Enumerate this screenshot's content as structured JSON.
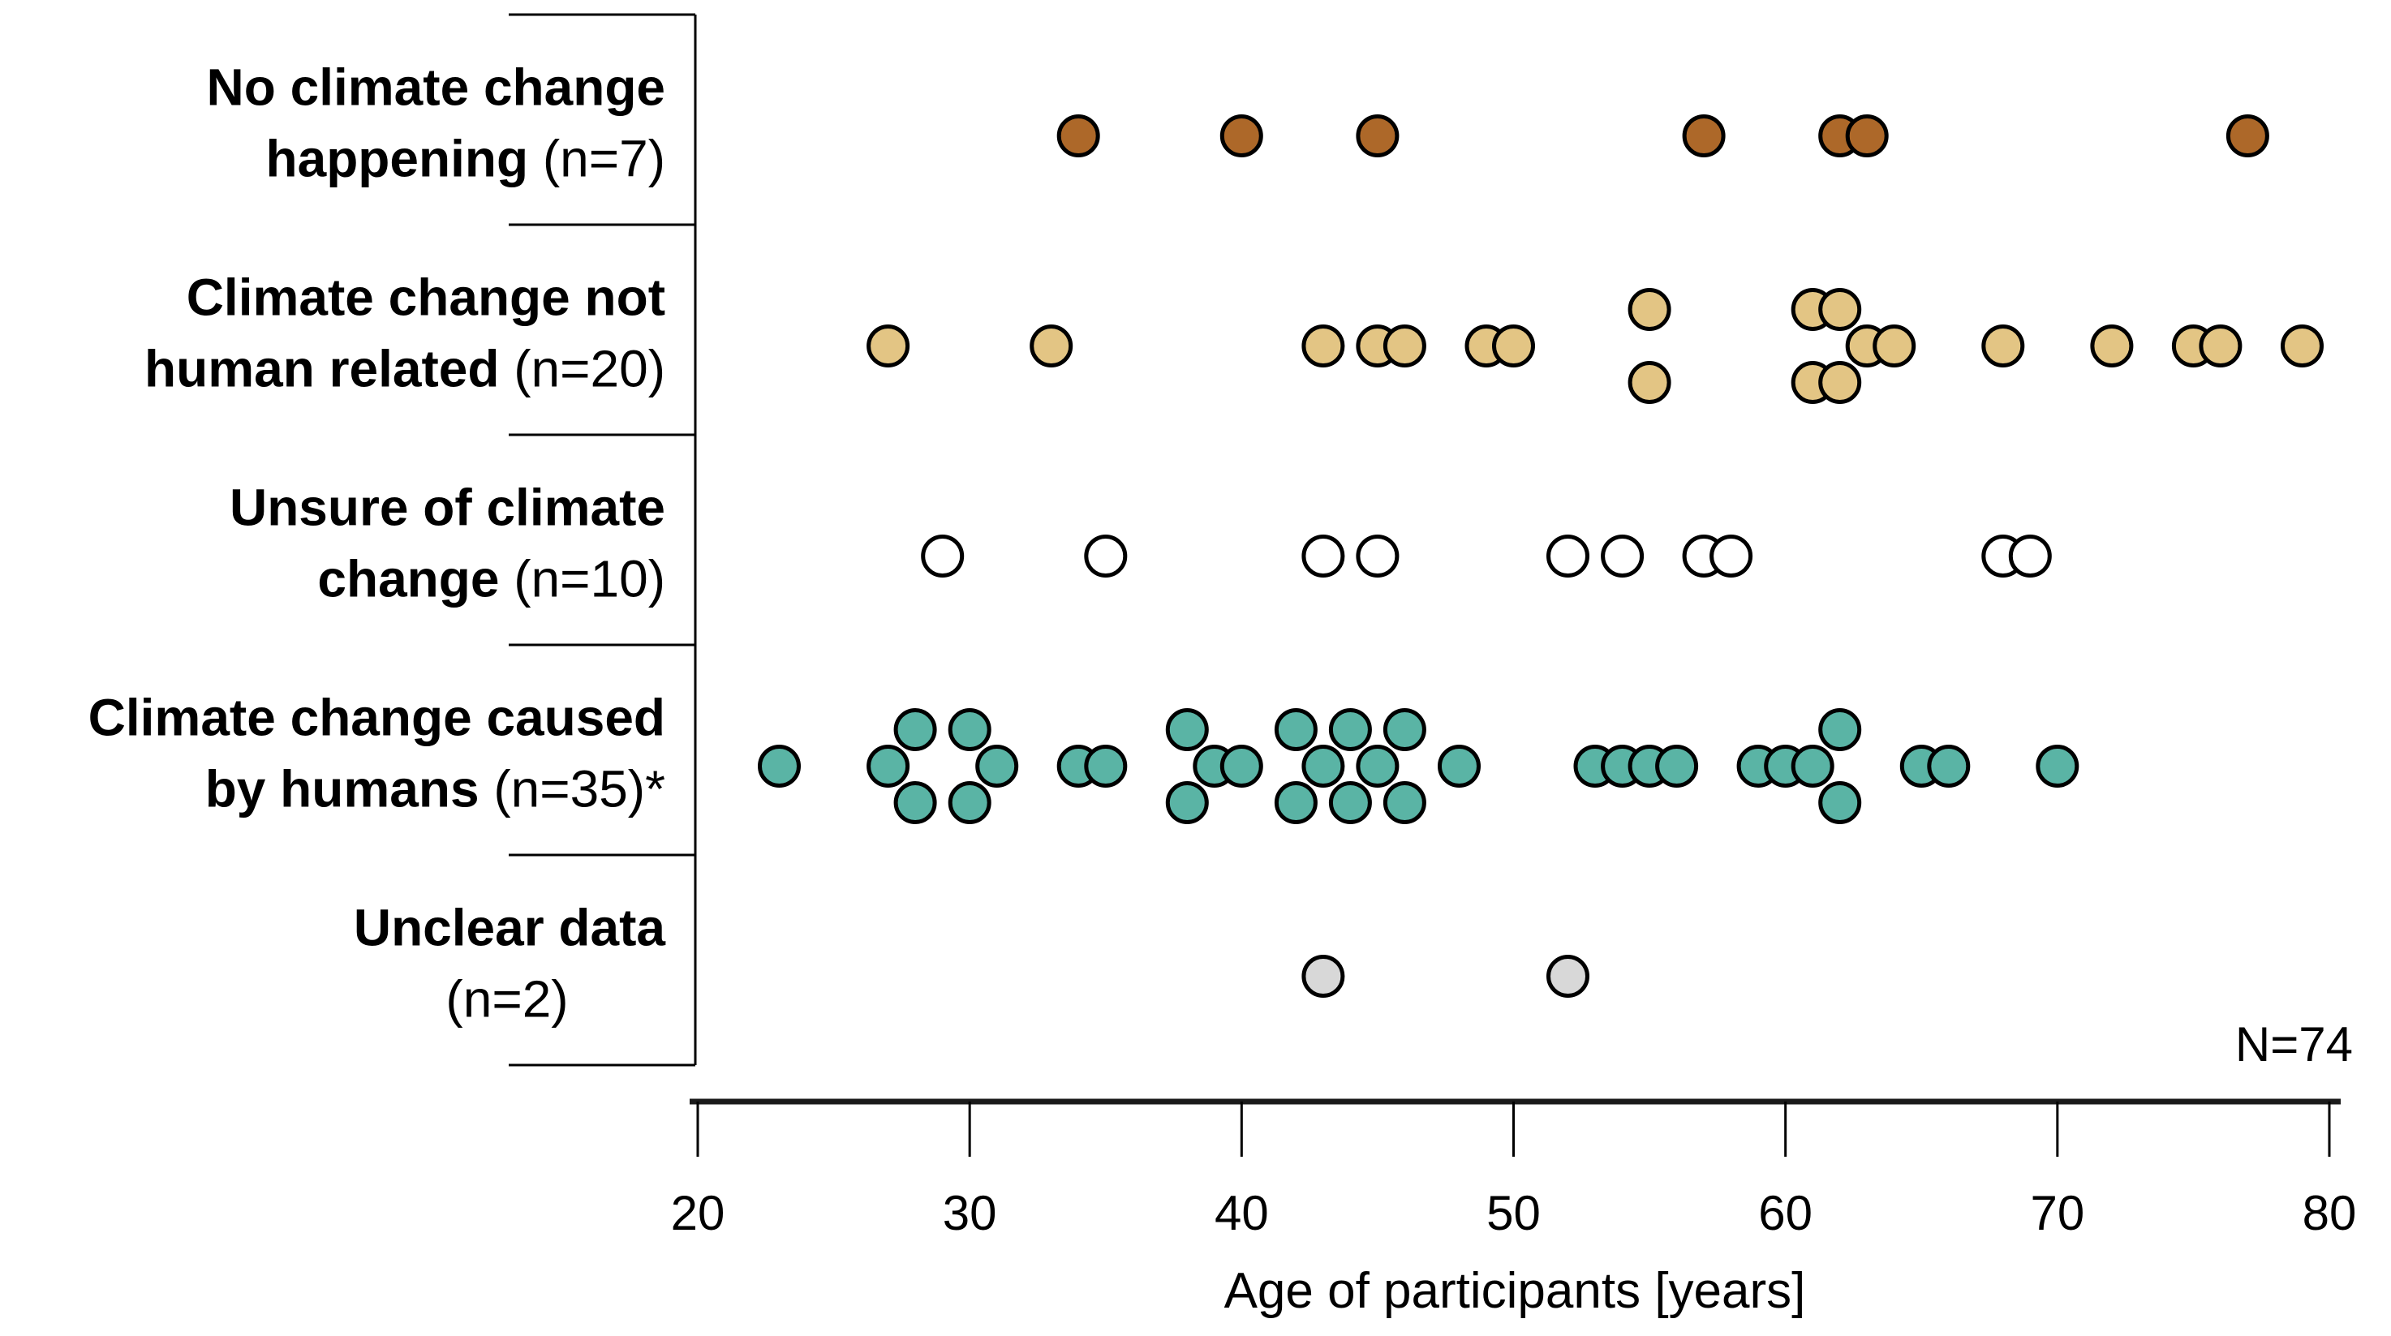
{
  "chart_data": {
    "type": "scatter",
    "title": "",
    "xlabel": "Age of participants [years]",
    "ylabel": "",
    "xlim": [
      20,
      80
    ],
    "xticks": [
      "20",
      "30",
      "40",
      "50",
      "60",
      "70",
      "80"
    ],
    "grid": false,
    "legend_position": "none",
    "total_annotation": "N=74",
    "dot_stroke_color": "#000000",
    "categories": [
      {
        "name": "no-climate-change-happening",
        "label_line1_bold": "No climate change",
        "label_line1_regular": "",
        "label_line2_bold": "happening ",
        "label_line2_regular": "(n=7)",
        "n": 7,
        "color": "#ad6829",
        "points": [
          [
            34,
            0
          ],
          [
            40,
            0
          ],
          [
            45,
            0
          ],
          [
            57,
            0
          ],
          [
            62,
            0
          ],
          [
            63,
            0
          ],
          [
            77,
            0
          ]
        ]
      },
      {
        "name": "climate-change-not-human-related",
        "label_line1_bold": "Climate change not",
        "label_line1_regular": "",
        "label_line2_bold": "human related ",
        "label_line2_regular": "(n=20)",
        "n": 20,
        "color": "#e3c584",
        "points": [
          [
            27,
            0
          ],
          [
            33,
            0
          ],
          [
            43,
            0
          ],
          [
            45,
            0
          ],
          [
            46,
            0
          ],
          [
            49,
            0
          ],
          [
            50,
            0
          ],
          [
            55,
            -1
          ],
          [
            55,
            1
          ],
          [
            61,
            -1
          ],
          [
            61,
            1
          ],
          [
            62,
            -1
          ],
          [
            62,
            1
          ],
          [
            63,
            0
          ],
          [
            64,
            0
          ],
          [
            68,
            0
          ],
          [
            72,
            0
          ],
          [
            75,
            0
          ],
          [
            76,
            0
          ],
          [
            79,
            0
          ]
        ]
      },
      {
        "name": "unsure-of-climate-change",
        "label_line1_bold": "Unsure of climate",
        "label_line1_regular": "",
        "label_line2_bold": "change ",
        "label_line2_regular": "(n=10)",
        "n": 10,
        "color": "#ffffff",
        "points": [
          [
            29,
            0
          ],
          [
            35,
            0
          ],
          [
            43,
            0
          ],
          [
            45,
            0
          ],
          [
            52,
            0
          ],
          [
            54,
            0
          ],
          [
            57,
            0
          ],
          [
            58,
            0
          ],
          [
            68,
            0
          ],
          [
            69,
            0
          ]
        ]
      },
      {
        "name": "climate-change-caused-by-humans",
        "label_line1_bold": "Climate change caused",
        "label_line1_regular": "",
        "label_line2_bold": "by humans ",
        "label_line2_regular": "(n=35)*",
        "n": 35,
        "color": "#5ab4a5",
        "points": [
          [
            23,
            0
          ],
          [
            27,
            0
          ],
          [
            28,
            -1
          ],
          [
            28,
            1
          ],
          [
            30,
            -1
          ],
          [
            30,
            1
          ],
          [
            31,
            0
          ],
          [
            34,
            0
          ],
          [
            35,
            0
          ],
          [
            38,
            -1
          ],
          [
            38,
            1
          ],
          [
            39,
            0
          ],
          [
            40,
            0
          ],
          [
            42,
            -1
          ],
          [
            42,
            1
          ],
          [
            43,
            0
          ],
          [
            44,
            -1
          ],
          [
            44,
            1
          ],
          [
            45,
            0
          ],
          [
            46,
            -1
          ],
          [
            46,
            1
          ],
          [
            48,
            0
          ],
          [
            53,
            0
          ],
          [
            54,
            0
          ],
          [
            55,
            0
          ],
          [
            56,
            0
          ],
          [
            59,
            0
          ],
          [
            60,
            0
          ],
          [
            61,
            0
          ],
          [
            62,
            -1
          ],
          [
            62,
            1
          ],
          [
            65,
            0
          ],
          [
            66,
            0
          ],
          [
            70,
            0
          ]
        ]
      },
      {
        "name": "unclear-data",
        "label_line1_bold": "Unclear data",
        "label_line1_regular": "",
        "label_line2_bold": "",
        "label_line2_regular": "(n=2)",
        "n": 2,
        "color": "#d8d8d8",
        "points": [
          [
            43,
            0
          ],
          [
            52,
            0
          ]
        ]
      }
    ]
  }
}
